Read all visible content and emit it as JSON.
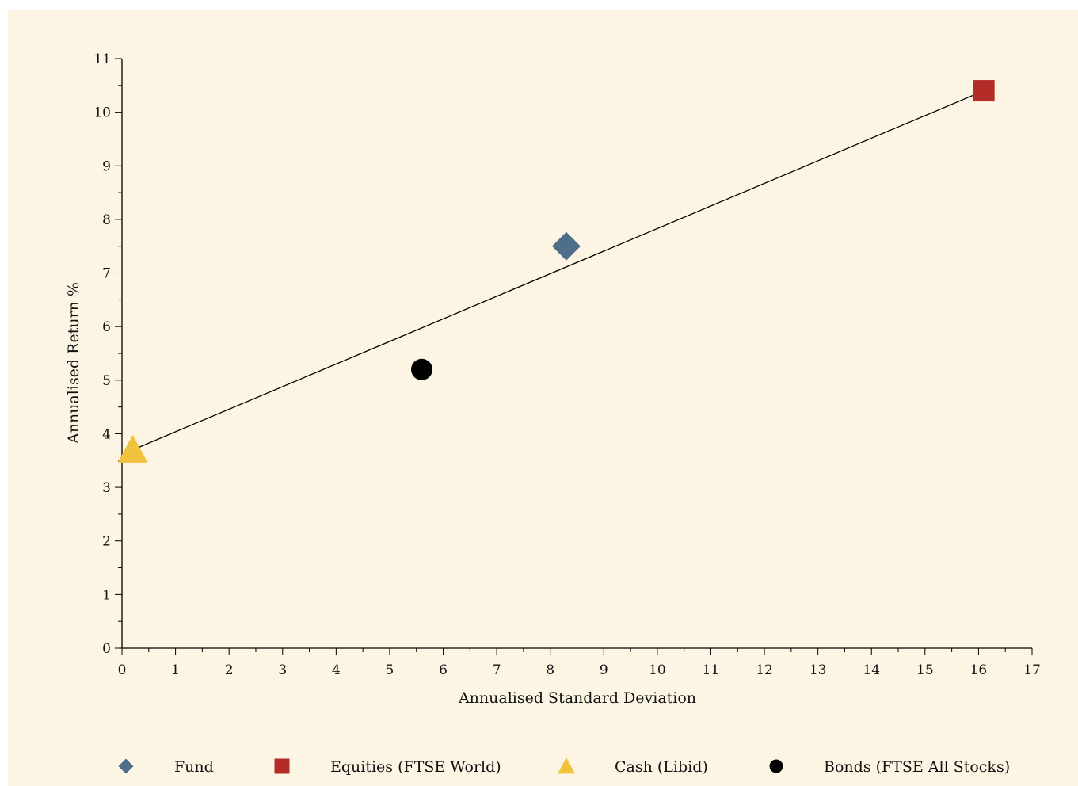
{
  "chart_data": {
    "type": "scatter",
    "xlabel": "Annualised Standard Deviation",
    "ylabel": "Annualised Return %",
    "xlim": [
      0,
      17
    ],
    "ylim": [
      0,
      11
    ],
    "x_ticks": [
      "0",
      "1",
      "2",
      "3",
      "4",
      "5",
      "6",
      "7",
      "8",
      "9",
      "10",
      "11",
      "12",
      "13",
      "14",
      "15",
      "16",
      "17"
    ],
    "y_ticks": [
      "0",
      "1",
      "2",
      "3",
      "4",
      "5",
      "6",
      "7",
      "8",
      "9",
      "10",
      "11"
    ],
    "grid": false,
    "legend_position": "bottom",
    "series": [
      {
        "name": "Fund",
        "marker": "diamond",
        "color": "#4f6e8a",
        "x": 8.3,
        "y": 7.5
      },
      {
        "name": "Equities (FTSE World)",
        "marker": "square",
        "color": "#b42c28",
        "x": 16.1,
        "y": 10.4
      },
      {
        "name": "Cash (Libid)",
        "marker": "triangle",
        "color": "#f0c23e",
        "x": 0.2,
        "y": 3.7
      },
      {
        "name": "Bonds (FTSE All Stocks)",
        "marker": "circle",
        "color": "#000000",
        "x": 5.6,
        "y": 5.2
      }
    ],
    "trend_line": {
      "x": [
        0.2,
        16.1
      ],
      "y": [
        3.7,
        10.4
      ],
      "color": "#000000"
    }
  }
}
